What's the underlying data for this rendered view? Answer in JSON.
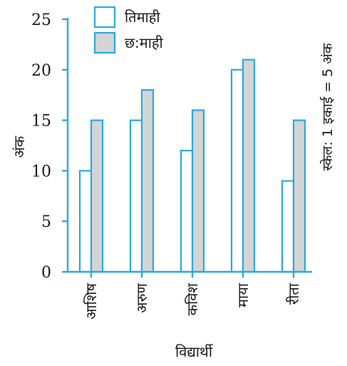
{
  "chart_data": {
    "type": "bar",
    "categories": [
      "आशिष",
      "अरुण",
      "कविश",
      "माया",
      "रीता"
    ],
    "series": [
      {
        "name": "तिमाही",
        "values": [
          10,
          15,
          12,
          20,
          9
        ]
      },
      {
        "name": "छ:माही",
        "values": [
          15,
          18,
          16,
          21,
          15
        ]
      }
    ],
    "xlabel": "विद्यार्थी",
    "ylabel": "अंक",
    "ylim": [
      0,
      25
    ],
    "yticks": [
      0,
      5,
      10,
      15,
      20,
      25
    ],
    "legend": "top-center",
    "grid": false,
    "note": "स्केल: 1 इकाई = 5 अंक",
    "colors": {
      "axis": "#29aae1",
      "series_fill": [
        "#ffffff",
        "#d4d4d4"
      ],
      "series_stroke": [
        "#29aae1",
        "#29aae1"
      ]
    }
  }
}
